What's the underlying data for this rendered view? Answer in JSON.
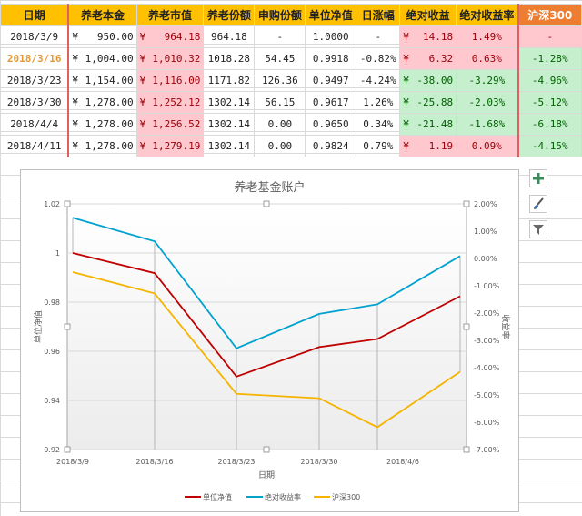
{
  "table": {
    "headers": [
      "日期",
      "养老本金",
      "养老市值",
      "养老份额",
      "申购份额",
      "单位净值",
      "日涨幅",
      "绝对收益",
      "绝对收益率",
      "沪深300"
    ],
    "rows": [
      {
        "date": "2018/3/9",
        "principal_sym": "¥",
        "principal": "950.00",
        "value_sym": "¥",
        "value": "964.18",
        "shares": "964.18",
        "purchase": "-",
        "nav": "1.0000",
        "daily": "-",
        "abs_sym": "¥",
        "abs": "14.18",
        "abs_rate": "1.49%",
        "hs300": "-",
        "abs_color": "pink",
        "hs_color": "pink"
      },
      {
        "date": "2018/3/16",
        "principal_sym": "¥",
        "principal": "1,004.00",
        "value_sym": "¥",
        "value": "1,010.32",
        "shares": "1018.28",
        "purchase": "54.45",
        "nav": "0.9918",
        "daily": "-0.82%",
        "abs_sym": "¥",
        "abs": "6.32",
        "abs_rate": "0.63%",
        "hs300": "-1.28%",
        "abs_color": "pink",
        "hs_color": "green"
      },
      {
        "date": "2018/3/23",
        "principal_sym": "¥",
        "principal": "1,154.00",
        "value_sym": "¥",
        "value": "1,116.00",
        "shares": "1171.82",
        "purchase": "126.36",
        "nav": "0.9497",
        "daily": "-4.24%",
        "abs_sym": "¥",
        "abs": "-38.00",
        "abs_rate": "-3.29%",
        "hs300": "-4.96%",
        "abs_color": "green",
        "hs_color": "green"
      },
      {
        "date": "2018/3/30",
        "principal_sym": "¥",
        "principal": "1,278.00",
        "value_sym": "¥",
        "value": "1,252.12",
        "shares": "1302.14",
        "purchase": "56.15",
        "nav": "0.9617",
        "daily": "1.26%",
        "abs_sym": "¥",
        "abs": "-25.88",
        "abs_rate": "-2.03%",
        "hs300": "-5.12%",
        "abs_color": "green",
        "hs_color": "green"
      },
      {
        "date": "2018/4/4",
        "principal_sym": "¥",
        "principal": "1,278.00",
        "value_sym": "¥",
        "value": "1,256.52",
        "shares": "1302.14",
        "purchase": "0.00",
        "nav": "0.9650",
        "daily": "0.34%",
        "abs_sym": "¥",
        "abs": "-21.48",
        "abs_rate": "-1.68%",
        "hs300": "-6.18%",
        "abs_color": "green",
        "hs_color": "green"
      },
      {
        "date": "2018/4/11",
        "principal_sym": "¥",
        "principal": "1,278.00",
        "value_sym": "¥",
        "value": "1,279.19",
        "shares": "1302.14",
        "purchase": "0.00",
        "nav": "0.9824",
        "daily": "0.79%",
        "abs_sym": "¥",
        "abs": "1.19",
        "abs_rate": "0.09%",
        "hs300": "-4.15%",
        "abs_color": "pink",
        "hs_color": "green"
      }
    ]
  },
  "colors": {
    "header_bg": "#ffc000",
    "hs300_header_bg": "#ed7d31",
    "positive_bg": "#ffc7ce",
    "negative_bg": "#c6efce",
    "nav_line": "#c00000",
    "rate_line": "#00a2d0",
    "hs300_line": "#f4b400"
  },
  "chart_data": {
    "type": "line",
    "title": "养老基金账户",
    "xlabel": "日期",
    "ylabel": "单位净值",
    "y2label": "收益率",
    "categories": [
      "2018/3/9",
      "2018/3/16",
      "2018/3/23",
      "2018/3/30",
      "2018/4/4",
      "2018/4/11"
    ],
    "x_tick_labels": [
      "2018/3/9",
      "2018/3/16",
      "2018/3/23",
      "2018/3/30",
      "2018/4/6"
    ],
    "ylim": [
      0.92,
      1.02
    ],
    "y_ticks": [
      "1.02",
      "1",
      "0.98",
      "0.96",
      "0.94",
      "0.92"
    ],
    "y2lim": [
      -0.07,
      0.02
    ],
    "y2_ticks": [
      "2.00%",
      "1.00%",
      "0.00%",
      "-1.00%",
      "-2.00%",
      "-3.00%",
      "-4.00%",
      "-5.00%",
      "-6.00%",
      "-7.00%"
    ],
    "series": [
      {
        "name": "单位净值",
        "axis": "left",
        "values": [
          1.0,
          0.9918,
          0.9497,
          0.9617,
          0.965,
          0.9824
        ],
        "color": "#c00000"
      },
      {
        "name": "绝对收益率",
        "axis": "right",
        "values": [
          0.0149,
          0.0063,
          -0.0329,
          -0.0203,
          -0.0168,
          0.0009
        ],
        "color": "#00a2d0"
      },
      {
        "name": "沪深300",
        "axis": "right",
        "values": [
          -0.005,
          -0.0128,
          -0.0496,
          -0.0512,
          -0.0618,
          -0.0415
        ],
        "color": "#f4b400"
      }
    ],
    "legend_position": "bottom",
    "grid": true
  },
  "chart_tools": [
    "plus-icon",
    "brush-icon",
    "filter-icon"
  ]
}
